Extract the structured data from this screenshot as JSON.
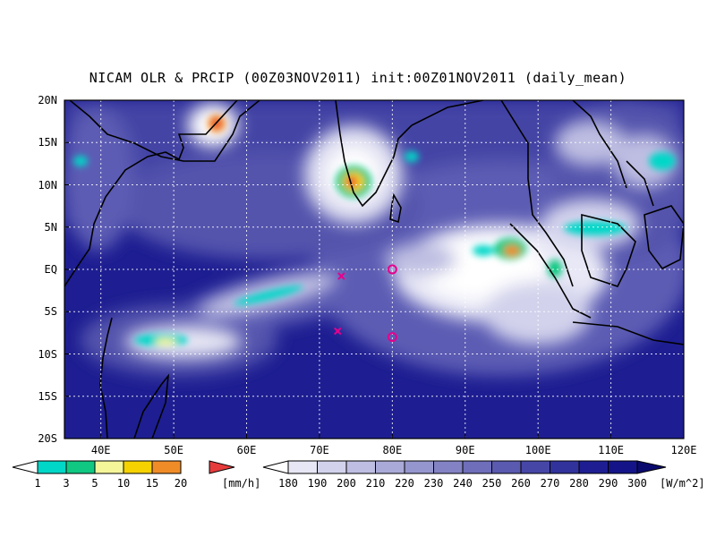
{
  "title": "NICAM OLR & PRCIP (00Z03NOV2011) init:00Z01NOV2011 (daily_mean)",
  "axes": {
    "lat_labels": [
      "20N",
      "15N",
      "10N",
      "5N",
      "EQ",
      "5S",
      "10S",
      "15S",
      "20S"
    ],
    "lon_labels": [
      "40E",
      "50E",
      "60E",
      "70E",
      "80E",
      "90E",
      "100E",
      "110E",
      "120E"
    ],
    "lat_range": [
      -20,
      20
    ],
    "lon_range": [
      35,
      120
    ],
    "grid": "dotted"
  },
  "precip_colorbar": {
    "labels": [
      "1",
      "3",
      "5",
      "10",
      "15",
      "20"
    ],
    "unit": "[mm/h]",
    "colors": [
      "#00d7c8",
      "#10c882",
      "#f5f59a",
      "#f5d200",
      "#f08c28",
      "#e63c3c"
    ]
  },
  "olr_colorbar": {
    "labels": [
      "180",
      "190",
      "200",
      "210",
      "220",
      "230",
      "240",
      "250",
      "260",
      "270",
      "280",
      "290",
      "300"
    ],
    "unit": "[W/m^2]",
    "colors": [
      "#ffffff",
      "#e6e6f4",
      "#d2d2ec",
      "#bebee2",
      "#aaaad8",
      "#9696ce",
      "#8282c4",
      "#6e6eba",
      "#5a5ab0",
      "#4646a6",
      "#32329c",
      "#1e1e92",
      "#141488",
      "#0a0a6e"
    ]
  },
  "markers": [
    {
      "type": "x",
      "lon": 73,
      "lat": -0.8
    },
    {
      "type": "x",
      "lon": 72.5,
      "lat": -7.3
    },
    {
      "type": "o",
      "lon": 80,
      "lat": 0
    },
    {
      "type": "o",
      "lon": 80,
      "lat": -8
    }
  ],
  "marker_color": "#e6008c"
}
